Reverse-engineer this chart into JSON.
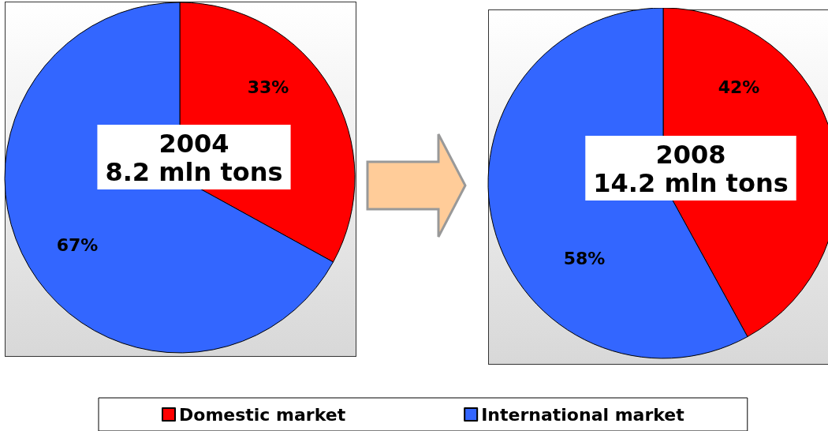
{
  "chart_data": [
    {
      "type": "pie",
      "title": "2004",
      "subtitle": "8.2 mln tons",
      "categories": [
        "Domestic market",
        "International market"
      ],
      "values": [
        33,
        67
      ],
      "value_labels": [
        "33%",
        "67%"
      ],
      "colors": [
        "#ff0000",
        "#3366ff"
      ],
      "legend": "bottom"
    },
    {
      "type": "pie",
      "title": "2008",
      "subtitle": "14.2 mln tons",
      "categories": [
        null,
        null
      ],
      "values": [
        42,
        58
      ],
      "value_labels": [
        "42%",
        "58%"
      ],
      "colors": [
        "#ff0000",
        "#3366ff"
      ],
      "legend": false
    }
  ]
}
